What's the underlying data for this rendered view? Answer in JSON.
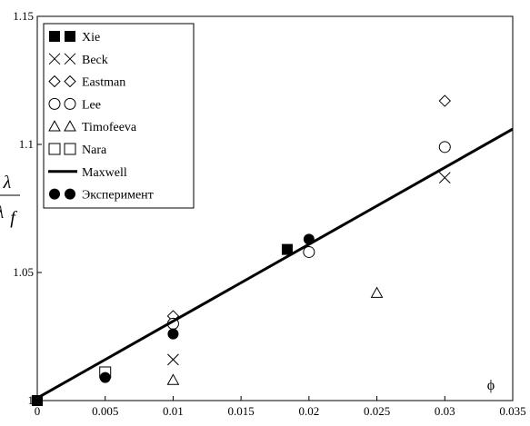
{
  "chart_data": {
    "type": "scatter",
    "title": "",
    "xlabel": "ϕ",
    "ylabel": {
      "numerator": "λ",
      "denominator": "λ",
      "subscript": "f"
    },
    "xlim": [
      0,
      0.035
    ],
    "ylim": [
      1,
      1.15
    ],
    "x_ticks": [
      {
        "value": 0,
        "label": "0"
      },
      {
        "value": 0.005,
        "label": "0.005"
      },
      {
        "value": 0.01,
        "label": "0.01"
      },
      {
        "value": 0.015,
        "label": "0.015"
      },
      {
        "value": 0.02,
        "label": "0.02"
      },
      {
        "value": 0.025,
        "label": "0.025"
      },
      {
        "value": 0.03,
        "label": "0.03"
      },
      {
        "value": 0.035,
        "label": "0.035"
      }
    ],
    "y_ticks": [
      {
        "value": 1,
        "label": "1"
      },
      {
        "value": 1.05,
        "label": "1.05"
      },
      {
        "value": 1.1,
        "label": "1.1"
      },
      {
        "value": 1.15,
        "label": "1.15"
      }
    ],
    "grid": false,
    "legend_position": "top-left",
    "series": [
      {
        "name": "Xie",
        "marker": "filled-square",
        "points": [
          [
            0,
            1.0
          ],
          [
            0.0184,
            1.059
          ]
        ]
      },
      {
        "name": "Beck",
        "marker": "cross",
        "points": [
          [
            0.01,
            1.016
          ],
          [
            0.03,
            1.087
          ]
        ]
      },
      {
        "name": "Eastman",
        "marker": "diamond",
        "points": [
          [
            0.01,
            1.033
          ],
          [
            0.03,
            1.117
          ]
        ]
      },
      {
        "name": "Lee",
        "marker": "circle",
        "points": [
          [
            0.01,
            1.03
          ],
          [
            0.02,
            1.058
          ],
          [
            0.03,
            1.099
          ]
        ]
      },
      {
        "name": "Timofeeva",
        "marker": "triangle",
        "points": [
          [
            0.01,
            1.008
          ],
          [
            0.025,
            1.042
          ]
        ]
      },
      {
        "name": "Nara",
        "marker": "square",
        "points": [
          [
            0.005,
            1.011
          ]
        ]
      },
      {
        "name": "Maxwell",
        "marker": "line",
        "points": [
          [
            0,
            1.001
          ],
          [
            0.035,
            1.106
          ]
        ]
      },
      {
        "name": "Эксперимент",
        "marker": "filled-circle",
        "points": [
          [
            0.005,
            1.009
          ],
          [
            0.01,
            1.026
          ],
          [
            0.02,
            1.063
          ]
        ]
      }
    ]
  }
}
